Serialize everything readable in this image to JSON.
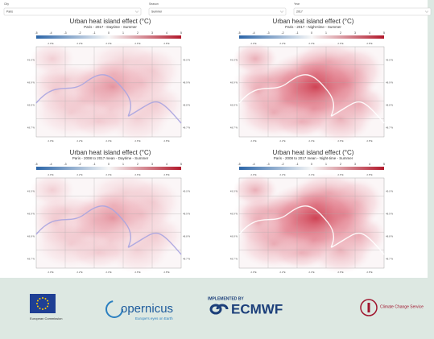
{
  "controls": [
    {
      "label": "City",
      "value": "Paris"
    },
    {
      "label": "Season",
      "value": "Summer"
    },
    {
      "label": "Year",
      "value": "2017"
    }
  ],
  "panels": [
    {
      "title": "Urban heat island effect (°C)",
      "subtitle": "Paris - 2017 - Daytime - Summer"
    },
    {
      "title": "Urban heat island effect (°C)",
      "subtitle": "Paris - 2017 - Night-time - Summer"
    },
    {
      "title": "Urban heat island effect (°C)",
      "subtitle": "Paris - 2008 to 2017 mean - Daytime - Summer"
    },
    {
      "title": "Urban heat island effect (°C)",
      "subtitle": "Paris - 2008 to 2017 mean - Night-time - Summer"
    }
  ],
  "colorbar_ticks": [
    -5,
    -4,
    -3,
    -2,
    -1,
    0,
    1,
    2,
    3,
    4,
    5
  ],
  "lon_labels": [
    "2.0°E",
    "2.2°E",
    "2.4°E",
    "2.6°E",
    "2.8°E"
  ],
  "lat_labels": [
    "49.0°N",
    "48.9°N",
    "48.8°N",
    "48.7°N"
  ],
  "footer": {
    "eu": "European Commission",
    "copernicus": "opernicus",
    "copernicus_tagline": "Europe's eyes on Earth",
    "implemented_by": "IMPLEMENTED BY",
    "ecmwf": "ECMWF",
    "c3s": "Climate Change Service"
  }
}
